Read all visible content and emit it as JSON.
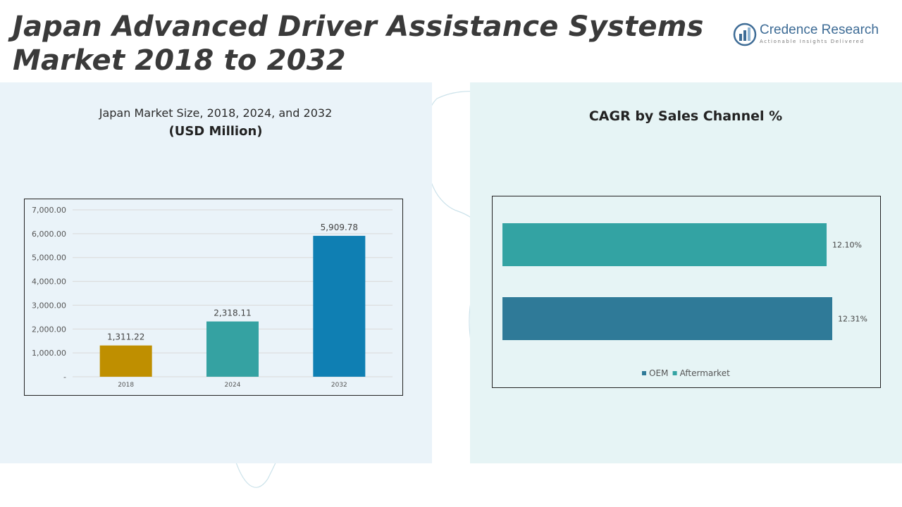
{
  "header": {
    "title_line1": "Japan Advanced Driver Assistance Systems",
    "title_line2": "Market 2018 to 2032"
  },
  "logo": {
    "name": "Credence Research",
    "tagline": "Actionable Insights Delivered",
    "icon": "bar-chart-logo-icon"
  },
  "colors": {
    "panel_left": "#eaf3f9",
    "panel_right": "#e6f4f5",
    "bar_2018": "#bf8f00",
    "bar_2024": "#35a2a2",
    "bar_2032": "#0f7fb3",
    "oem": "#2f7a98",
    "aftermarket": "#33a3a3"
  },
  "chart_data": [
    {
      "type": "bar",
      "title": "Japan Market Size, 2018, 2024, and 2032",
      "subtitle": "(USD Million)",
      "categories": [
        "2018",
        "2024",
        "2032"
      ],
      "values": [
        1311.22,
        2318.11,
        5909.78
      ],
      "value_labels": [
        "1,311.22",
        "2,318.11",
        "5,909.78"
      ],
      "ylim": [
        0,
        7000
      ],
      "yticks": [
        0,
        1000,
        2000,
        3000,
        4000,
        5000,
        6000,
        7000
      ],
      "ytick_labels": [
        "-",
        "1,000.00",
        "2,000.00",
        "3,000.00",
        "4,000.00",
        "5,000.00",
        "6,000.00",
        "7,000.00"
      ],
      "grid": true,
      "legend": "none"
    },
    {
      "type": "bar",
      "orientation": "horizontal",
      "title": "CAGR by Sales Channel %",
      "categories": [
        "Aftermarket",
        "OEM"
      ],
      "values": [
        12.1,
        12.31
      ],
      "value_labels": [
        "12.10%",
        "12.31%"
      ],
      "legend_entries": [
        "OEM",
        "Aftermarket"
      ],
      "legend": "bottom",
      "grid": false
    }
  ]
}
